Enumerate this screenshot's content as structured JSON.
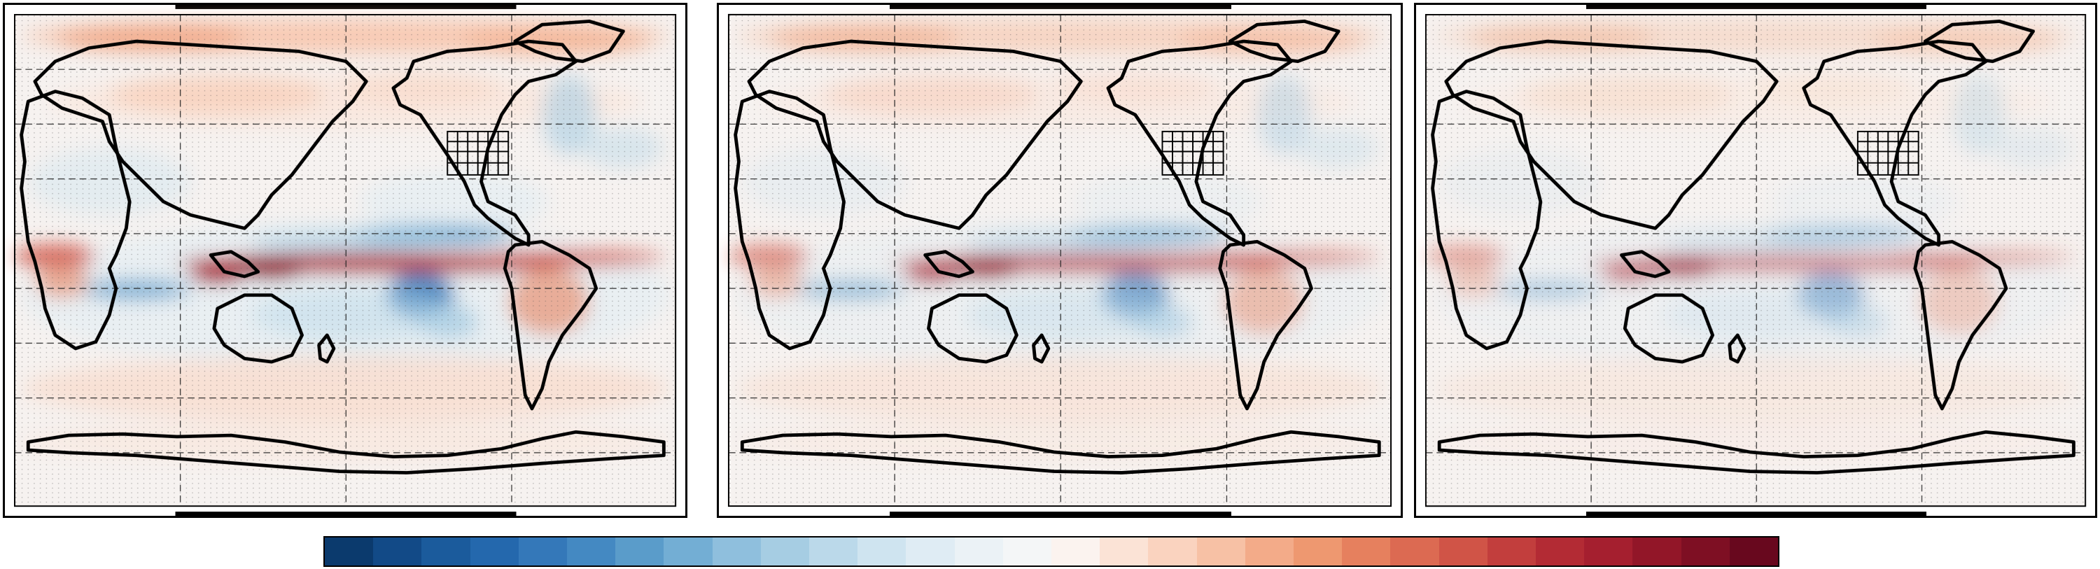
{
  "figure": {
    "panels": [
      {
        "id": "panel-1",
        "intensity": 1.0
      },
      {
        "id": "panel-2",
        "intensity": 0.75
      },
      {
        "id": "panel-3",
        "intensity": 0.55
      }
    ],
    "colormap": {
      "name": "RdBu_r",
      "colors": [
        "#0b3a6d",
        "#124a87",
        "#1b5b9c",
        "#2468ad",
        "#3478b9",
        "#4489c2",
        "#5a9cca",
        "#73aed4",
        "#8fbfdd",
        "#a6cde3",
        "#bbd9ea",
        "#cfe4f0",
        "#dfecf4",
        "#ebf2f6",
        "#f4f6f7",
        "#fbf3ef",
        "#fbe3d6",
        "#fad3bf",
        "#f7c1a5",
        "#f3ab89",
        "#ee9870",
        "#e6805e",
        "#dc6a52",
        "#d05447",
        "#c23e3d",
        "#b32b34",
        "#a51f2f",
        "#921628",
        "#7e0f23",
        "#68081e"
      ],
      "tick_labels": []
    },
    "map_features": [
      "coastlines",
      "us-state-borders",
      "dashed-graticule",
      "stippling-dots"
    ]
  }
}
